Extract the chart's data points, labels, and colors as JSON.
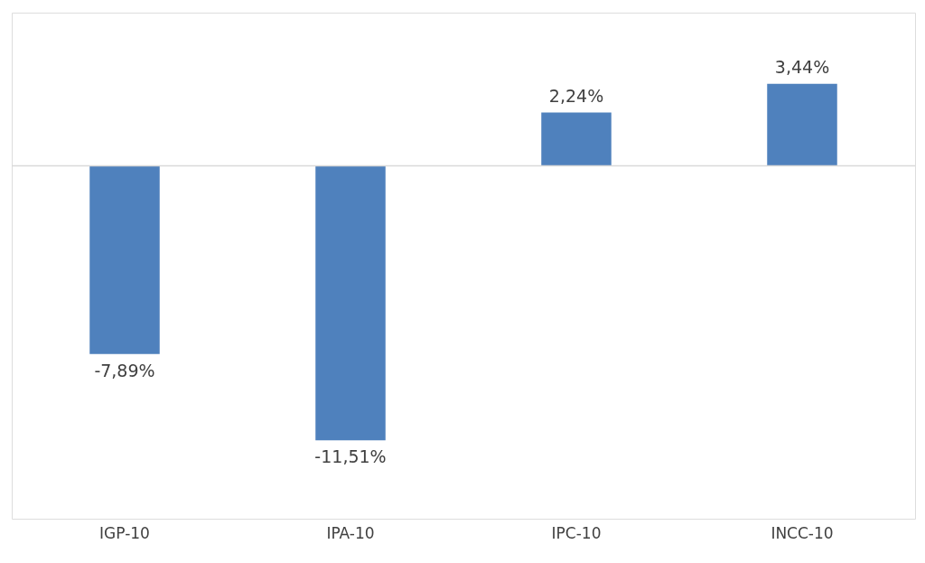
{
  "chart_data": {
    "type": "bar",
    "categories": [
      "IGP-10",
      "IPA-10",
      "IPC-10",
      "INCC-10"
    ],
    "values": [
      -7.89,
      -11.51,
      2.24,
      3.44
    ],
    "value_labels": [
      "-7,89%",
      "-11,51%",
      "2,24%",
      "3,44%"
    ],
    "color": "#4f81bd",
    "grid": false
  }
}
